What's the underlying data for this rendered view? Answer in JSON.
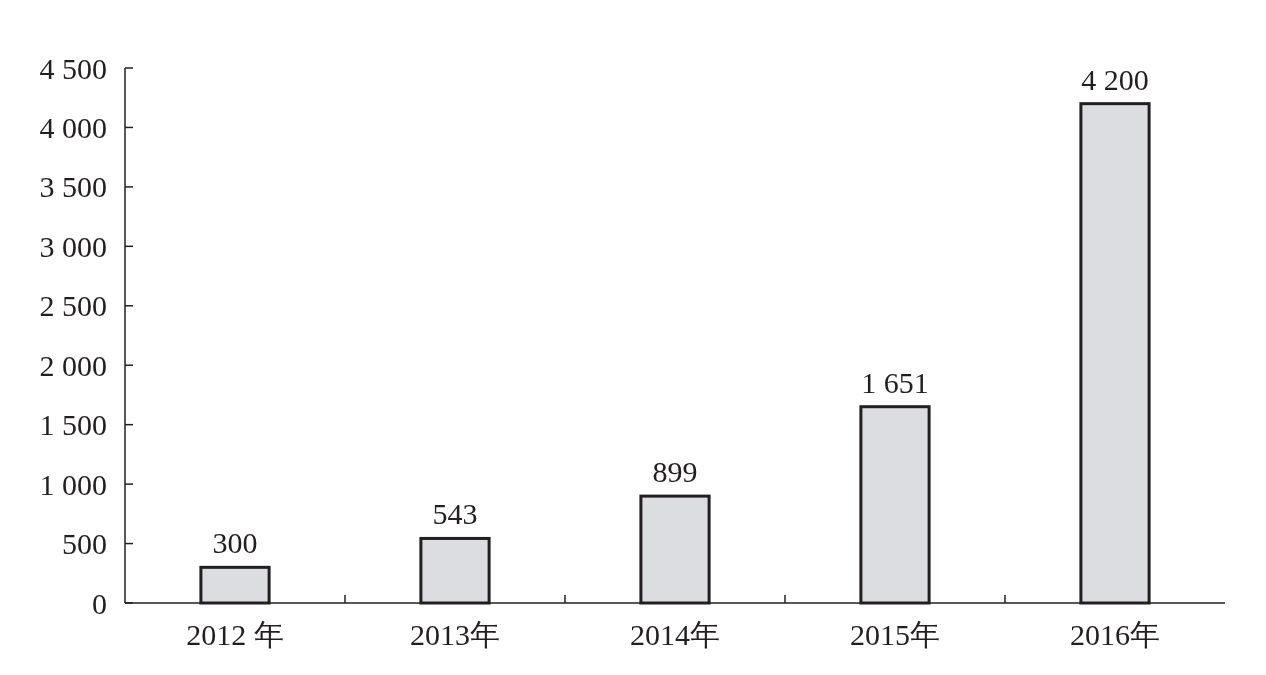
{
  "chart_data": {
    "type": "bar",
    "categories": [
      "2012 年",
      "2013年",
      "2014年",
      "2015年",
      "2016年"
    ],
    "values": [
      300,
      543,
      899,
      1651,
      4200
    ],
    "color": "#dcdde0",
    "ylim": [
      0,
      4500
    ],
    "yticks": [
      0,
      500,
      {
        "value": 1000,
        "label": "1 000"
      },
      {
        "value": 1500,
        "label": "1 500"
      },
      {
        "value": 2000,
        "label": "2 000"
      },
      {
        "value": 2500,
        "label": "2 500"
      },
      {
        "value": 3000,
        "label": "3 000"
      },
      {
        "value": 3500,
        "label": "3 500"
      },
      {
        "value": 4000,
        "label": "4 000"
      },
      {
        "value": 4500,
        "label": "4 500"
      }
    ],
    "value_labels": [
      "300",
      "543",
      "899",
      "1 651",
      "4 200"
    ],
    "grid": false
  }
}
